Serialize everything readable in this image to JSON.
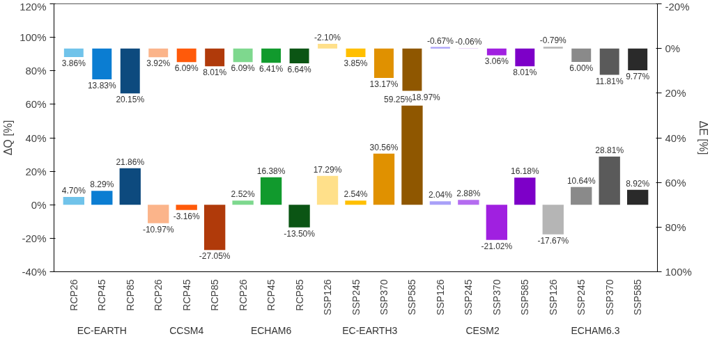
{
  "chart_data": {
    "type": "bar",
    "ylabel": "ΔQ [%]",
    "y2label": "ΔE [%]",
    "categories": [
      "RCP26",
      "RCP45",
      "RCP85",
      "RCP26",
      "RCP45",
      "RCP85",
      "RCP26",
      "RCP45",
      "RCP85",
      "SSP126",
      "SSP245",
      "SSP370",
      "SSP585",
      "SSP126",
      "SSP245",
      "SSP370",
      "SSP585",
      "SSP126",
      "SSP245",
      "SSP370",
      "SSP585"
    ],
    "annotations": [
      "EC-EARTH",
      "CCSM4",
      "ECHAM6",
      "EC-EARTH3",
      "CESM2",
      "ECHAM6.3"
    ],
    "series": [
      {
        "colors": [
          "#70c3ea",
          "#0b7dd2",
          "#0d4a7e",
          "#fbb48a",
          "#ff5a0a",
          "#b03a0a",
          "#7ed88e",
          "#119a2d",
          "#0b5514",
          "#ffe08a",
          "#ffbf00",
          "#e09100",
          "#8f5700",
          "#a9a0f8",
          "#b56cf0",
          "#a020e0",
          "#7d00c8",
          "#b5b5b5",
          "#8a8a8a",
          "#5a5a5a",
          "#2a2a2a"
        ],
        "values": [
          4.7,
          8.29,
          21.86,
          -10.97,
          -3.16,
          -27.05,
          2.52,
          16.38,
          -13.5,
          17.29,
          2.54,
          30.56,
          59.25,
          2.04,
          2.88,
          -21.02,
          16.18,
          -17.67,
          10.64,
          28.81,
          8.92
        ],
        "value_labels": [
          "4.70%",
          "8.29%",
          "21.86%",
          "-10.97%",
          "-3.16%",
          "-27.05%",
          "2.52%",
          "16.38%",
          "-13.50%",
          "17.29%",
          "2.54%",
          "30.56%",
          "59.25%",
          "2.04%",
          "2.88%",
          "-21.02%",
          "16.18%",
          "-17.67%",
          "10.64%",
          "28.81%",
          "8.92%"
        ]
      },
      {
        "axis": "y2",
        "colors": [
          "#70c3ea",
          "#0b7dd2",
          "#0d4a7e",
          "#fbb48a",
          "#ff5a0a",
          "#b03a0a",
          "#7ed88e",
          "#119a2d",
          "#0b5514",
          "#ffe08a",
          "#ffbf00",
          "#e09100",
          "#8f5700",
          "#a9a0f8",
          "#b56cf0",
          "#a020e0",
          "#7d00c8",
          "#b5b5b5",
          "#8a8a8a",
          "#5a5a5a",
          "#2a2a2a"
        ],
        "values": [
          3.86,
          13.83,
          20.15,
          3.92,
          6.09,
          8.01,
          6.09,
          6.41,
          6.64,
          -2.1,
          3.85,
          13.17,
          18.97,
          -0.67,
          -0.06,
          3.06,
          8.01,
          -0.79,
          6.0,
          11.81,
          9.77
        ],
        "value_labels": [
          "3.86%",
          "13.83%",
          "20.15%",
          "3.92%",
          "6.09%",
          "8.01%",
          "6.09%",
          "6.41%",
          "6.64%",
          "-2.10%",
          "3.85%",
          "13.17%",
          "18.97%",
          "-0.67%",
          "-0.06%",
          "3.06%",
          "8.01%",
          "-0.79%",
          "6.00%",
          "11.81%",
          "9.77%"
        ]
      }
    ],
    "ylim": [
      -40,
      120
    ],
    "yticks": [
      {
        "value": -40,
        "label": "-40%"
      },
      {
        "value": -20,
        "label": "-20%"
      },
      {
        "value": 0,
        "label": "0%"
      },
      {
        "value": 20,
        "label": "20%"
      },
      {
        "value": 40,
        "label": "40%"
      },
      {
        "value": 60,
        "label": "60%"
      },
      {
        "value": 80,
        "label": "80%"
      },
      {
        "value": 100,
        "label": "100%"
      },
      {
        "value": 120,
        "label": "120%"
      }
    ],
    "y2lim": [
      100,
      -20
    ],
    "y2ticks": [
      {
        "value": -20,
        "label": "-20%"
      },
      {
        "value": 0,
        "label": "0%"
      },
      {
        "value": 20,
        "label": "20%"
      },
      {
        "value": 40,
        "label": "40%"
      },
      {
        "value": 60,
        "label": "60%"
      },
      {
        "value": 80,
        "label": "80%"
      },
      {
        "value": 100,
        "label": "100%"
      }
    ],
    "grid": false
  }
}
